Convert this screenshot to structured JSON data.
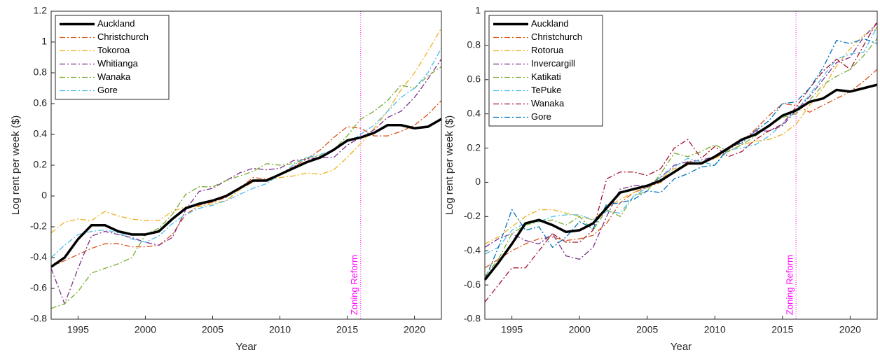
{
  "chart_data": [
    {
      "type": "line",
      "x_label": "Year",
      "y_label": "Log rent per week ($)",
      "x": [
        1993,
        1994,
        1995,
        1996,
        1997,
        1998,
        1999,
        2000,
        2001,
        2002,
        2003,
        2004,
        2005,
        2006,
        2007,
        2008,
        2009,
        2010,
        2011,
        2012,
        2013,
        2014,
        2015,
        2016,
        2017,
        2018,
        2019,
        2020,
        2021,
        2022
      ],
      "xlim": [
        1993,
        2022
      ],
      "xticks": [
        1995,
        2000,
        2005,
        2010,
        2015,
        2020
      ],
      "ylim": [
        -0.8,
        1.2
      ],
      "yticks": [
        -0.8,
        -0.6,
        -0.4,
        -0.2,
        0,
        0.2,
        0.4,
        0.6,
        0.8,
        1,
        1.2
      ],
      "legend": "top-left",
      "annotation": {
        "text": "Zoning Reform",
        "x": 2016,
        "color": "#ff00ff"
      },
      "series": [
        {
          "name": "Auckland",
          "color": "#000000",
          "linestyle": "solid",
          "values": [
            -0.46,
            -0.4,
            -0.28,
            -0.19,
            -0.19,
            -0.23,
            -0.25,
            -0.25,
            -0.23,
            -0.15,
            -0.08,
            -0.05,
            -0.03,
            0.0,
            0.05,
            0.1,
            0.1,
            0.14,
            0.18,
            0.22,
            0.25,
            0.3,
            0.36,
            0.38,
            0.41,
            0.46,
            0.46,
            0.44,
            0.45,
            0.5
          ]
        },
        {
          "name": "Christchurch",
          "color": "#D95319",
          "linestyle": "dashdot",
          "values": [
            -0.46,
            -0.42,
            -0.38,
            -0.34,
            -0.31,
            -0.31,
            -0.33,
            -0.33,
            -0.32,
            -0.25,
            -0.12,
            -0.06,
            -0.04,
            -0.01,
            0.05,
            0.12,
            0.11,
            0.14,
            0.19,
            0.24,
            0.3,
            0.38,
            0.45,
            0.44,
            0.39,
            0.39,
            0.42,
            0.46,
            0.53,
            0.62
          ]
        },
        {
          "name": "Tokoroa",
          "color": "#EDB120",
          "linestyle": "dashdot",
          "values": [
            -0.24,
            -0.17,
            -0.15,
            -0.16,
            -0.1,
            -0.13,
            -0.15,
            -0.16,
            -0.16,
            -0.1,
            -0.07,
            -0.07,
            -0.05,
            -0.03,
            0.04,
            0.09,
            0.1,
            0.12,
            0.13,
            0.15,
            0.14,
            0.17,
            0.25,
            0.34,
            0.44,
            0.55,
            0.69,
            0.8,
            0.94,
            1.09
          ]
        },
        {
          "name": "Whitianga",
          "color": "#7E2F8E",
          "linestyle": "dashdot",
          "values": [
            -0.47,
            -0.7,
            -0.47,
            -0.26,
            -0.23,
            -0.25,
            -0.27,
            -0.3,
            -0.32,
            -0.27,
            -0.09,
            0.03,
            0.05,
            0.1,
            0.15,
            0.18,
            0.17,
            0.18,
            0.23,
            0.24,
            0.25,
            0.25,
            0.33,
            0.38,
            0.43,
            0.51,
            0.55,
            0.64,
            0.76,
            0.89
          ]
        },
        {
          "name": "Wanaka",
          "color": "#77AC30",
          "linestyle": "dashdot",
          "values": [
            -0.73,
            -0.7,
            -0.62,
            -0.5,
            -0.47,
            -0.44,
            -0.4,
            -0.25,
            -0.21,
            -0.12,
            0.01,
            0.06,
            0.06,
            0.1,
            0.13,
            0.16,
            0.21,
            0.2,
            0.21,
            0.25,
            0.26,
            0.3,
            0.39,
            0.5,
            0.55,
            0.62,
            0.72,
            0.7,
            0.78,
            0.84
          ]
        },
        {
          "name": "Gore",
          "color": "#4DBEEE",
          "linestyle": "dashdot",
          "values": [
            -0.4,
            -0.32,
            -0.25,
            -0.23,
            -0.22,
            -0.24,
            -0.28,
            -0.3,
            -0.26,
            -0.18,
            -0.12,
            -0.08,
            -0.06,
            -0.03,
            0.01,
            0.05,
            0.08,
            0.14,
            0.2,
            0.25,
            0.27,
            0.3,
            0.35,
            0.4,
            0.46,
            0.55,
            0.64,
            0.7,
            0.8,
            0.96
          ]
        }
      ]
    },
    {
      "type": "line",
      "x_label": "Year",
      "y_label": "Log rent per week ($)",
      "x": [
        1993,
        1994,
        1995,
        1996,
        1997,
        1998,
        1999,
        2000,
        2001,
        2002,
        2003,
        2004,
        2005,
        2006,
        2007,
        2008,
        2009,
        2010,
        2011,
        2012,
        2013,
        2014,
        2015,
        2016,
        2017,
        2018,
        2019,
        2020,
        2021,
        2022
      ],
      "xlim": [
        1993,
        2022
      ],
      "xticks": [
        1995,
        2000,
        2005,
        2010,
        2015,
        2020
      ],
      "ylim": [
        -0.8,
        1
      ],
      "yticks": [
        -0.8,
        -0.6,
        -0.4,
        -0.2,
        0,
        0.2,
        0.4,
        0.6,
        0.8,
        1
      ],
      "legend": "top-left",
      "annotation": {
        "text": "Zoning Reform",
        "x": 2016,
        "color": "#ff00ff"
      },
      "series": [
        {
          "name": "Auckland",
          "color": "#000000",
          "linestyle": "solid",
          "values": [
            -0.57,
            -0.47,
            -0.36,
            -0.24,
            -0.22,
            -0.25,
            -0.29,
            -0.28,
            -0.24,
            -0.15,
            -0.06,
            -0.04,
            -0.02,
            0.01,
            0.06,
            0.11,
            0.11,
            0.15,
            0.2,
            0.25,
            0.28,
            0.33,
            0.39,
            0.42,
            0.47,
            0.49,
            0.54,
            0.53,
            0.55,
            0.57
          ]
        },
        {
          "name": "Christchurch",
          "color": "#D95319",
          "linestyle": "dashdot",
          "values": [
            -0.5,
            -0.45,
            -0.4,
            -0.36,
            -0.33,
            -0.32,
            -0.34,
            -0.33,
            -0.31,
            -0.24,
            -0.12,
            -0.06,
            -0.03,
            0.0,
            0.06,
            0.12,
            0.11,
            0.14,
            0.19,
            0.24,
            0.31,
            0.39,
            0.46,
            0.45,
            0.41,
            0.45,
            0.49,
            0.53,
            0.59,
            0.66
          ]
        },
        {
          "name": "Rotorua",
          "color": "#EDB120",
          "linestyle": "dashdot",
          "values": [
            -0.36,
            -0.32,
            -0.26,
            -0.2,
            -0.16,
            -0.16,
            -0.18,
            -0.2,
            -0.22,
            -0.15,
            -0.1,
            -0.06,
            -0.02,
            0.02,
            0.08,
            0.1,
            0.12,
            0.14,
            0.18,
            0.22,
            0.24,
            0.25,
            0.28,
            0.34,
            0.45,
            0.55,
            0.68,
            0.78,
            0.86,
            0.9
          ]
        },
        {
          "name": "Invercargill",
          "color": "#7E2F8E",
          "linestyle": "dashdot",
          "values": [
            -0.38,
            -0.33,
            -0.3,
            -0.34,
            -0.36,
            -0.3,
            -0.43,
            -0.45,
            -0.38,
            -0.2,
            -0.04,
            -0.02,
            -0.02,
            0.03,
            0.1,
            0.12,
            0.13,
            0.15,
            0.2,
            0.24,
            0.3,
            0.3,
            0.33,
            0.42,
            0.5,
            0.6,
            0.7,
            0.73,
            0.85,
            0.93
          ]
        },
        {
          "name": "Katikati",
          "color": "#77AC30",
          "linestyle": "dashdot",
          "values": [
            -0.55,
            -0.45,
            -0.3,
            -0.25,
            -0.23,
            -0.22,
            -0.25,
            -0.2,
            -0.28,
            -0.16,
            -0.2,
            -0.08,
            -0.05,
            0.05,
            0.17,
            0.15,
            0.18,
            0.22,
            0.18,
            0.22,
            0.27,
            0.33,
            0.38,
            0.4,
            0.48,
            0.57,
            0.62,
            0.66,
            0.74,
            0.84
          ]
        },
        {
          "name": "TePuke",
          "color": "#4DBEEE",
          "linestyle": "dashdot",
          "values": [
            -0.42,
            -0.38,
            -0.28,
            -0.24,
            -0.23,
            -0.2,
            -0.19,
            -0.19,
            -0.22,
            -0.17,
            -0.18,
            -0.08,
            -0.03,
            0.03,
            0.09,
            0.14,
            0.12,
            0.1,
            0.19,
            0.2,
            0.22,
            0.27,
            0.34,
            0.42,
            0.51,
            0.62,
            0.72,
            0.75,
            0.76,
            0.91
          ]
        },
        {
          "name": "Wanaka",
          "color": "#A2142F",
          "linestyle": "dashdot",
          "values": [
            -0.7,
            -0.6,
            -0.5,
            -0.5,
            -0.4,
            -0.3,
            -0.35,
            -0.35,
            -0.28,
            0.02,
            0.06,
            0.06,
            0.04,
            0.08,
            0.2,
            0.25,
            0.14,
            0.21,
            0.15,
            0.18,
            0.25,
            0.3,
            0.34,
            0.44,
            0.55,
            0.65,
            0.72,
            0.66,
            0.8,
            0.94
          ]
        },
        {
          "name": "Gore",
          "color": "#0072BD",
          "linestyle": "dashdot",
          "values": [
            -0.57,
            -0.38,
            -0.16,
            -0.28,
            -0.26,
            -0.38,
            -0.32,
            -0.23,
            -0.27,
            -0.13,
            -0.12,
            -0.1,
            -0.05,
            -0.06,
            0.02,
            0.05,
            0.09,
            0.1,
            0.2,
            0.23,
            0.3,
            0.36,
            0.46,
            0.47,
            0.55,
            0.67,
            0.83,
            0.81,
            0.84,
            0.81
          ]
        }
      ]
    }
  ]
}
